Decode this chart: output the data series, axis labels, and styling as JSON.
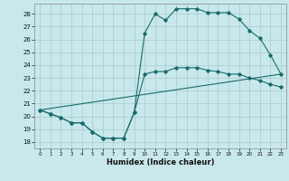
{
  "xlabel": "Humidex (Indice chaleur)",
  "bg_color": "#c8e8ec",
  "grid_color": "#a8cccc",
  "line_color": "#1a6b6b",
  "xlim": [
    -0.5,
    23.5
  ],
  "ylim": [
    17.5,
    28.8
  ],
  "yticks": [
    18,
    19,
    20,
    21,
    22,
    23,
    24,
    25,
    26,
    27,
    28
  ],
  "xticks": [
    0,
    1,
    2,
    3,
    4,
    5,
    6,
    7,
    8,
    9,
    10,
    11,
    12,
    13,
    14,
    15,
    16,
    17,
    18,
    19,
    20,
    21,
    22,
    23
  ],
  "line1_x": [
    0,
    1,
    2,
    3,
    4,
    5,
    6,
    7,
    8,
    9,
    10,
    11,
    12,
    13,
    14,
    15,
    16,
    17,
    18,
    19,
    20,
    21,
    22,
    23
  ],
  "line1_y": [
    20.5,
    20.2,
    19.9,
    19.5,
    19.5,
    18.8,
    18.3,
    18.3,
    18.3,
    20.3,
    26.5,
    28.0,
    27.5,
    28.4,
    28.4,
    28.4,
    28.1,
    28.1,
    28.1,
    27.6,
    26.7,
    26.1,
    24.8,
    23.3
  ],
  "line2_x": [
    0,
    1,
    2,
    3,
    4,
    5,
    6,
    7,
    8,
    9,
    10,
    11,
    12,
    13,
    14,
    15,
    16,
    17,
    18,
    19,
    20,
    21,
    22,
    23
  ],
  "line2_y": [
    20.5,
    20.2,
    19.9,
    19.5,
    19.5,
    18.8,
    18.3,
    18.3,
    18.3,
    20.3,
    23.3,
    23.5,
    23.5,
    23.8,
    23.8,
    23.8,
    23.6,
    23.5,
    23.3,
    23.3,
    23.0,
    22.8,
    22.5,
    22.3
  ],
  "line3_x": [
    0,
    23
  ],
  "line3_y": [
    20.5,
    23.3
  ]
}
